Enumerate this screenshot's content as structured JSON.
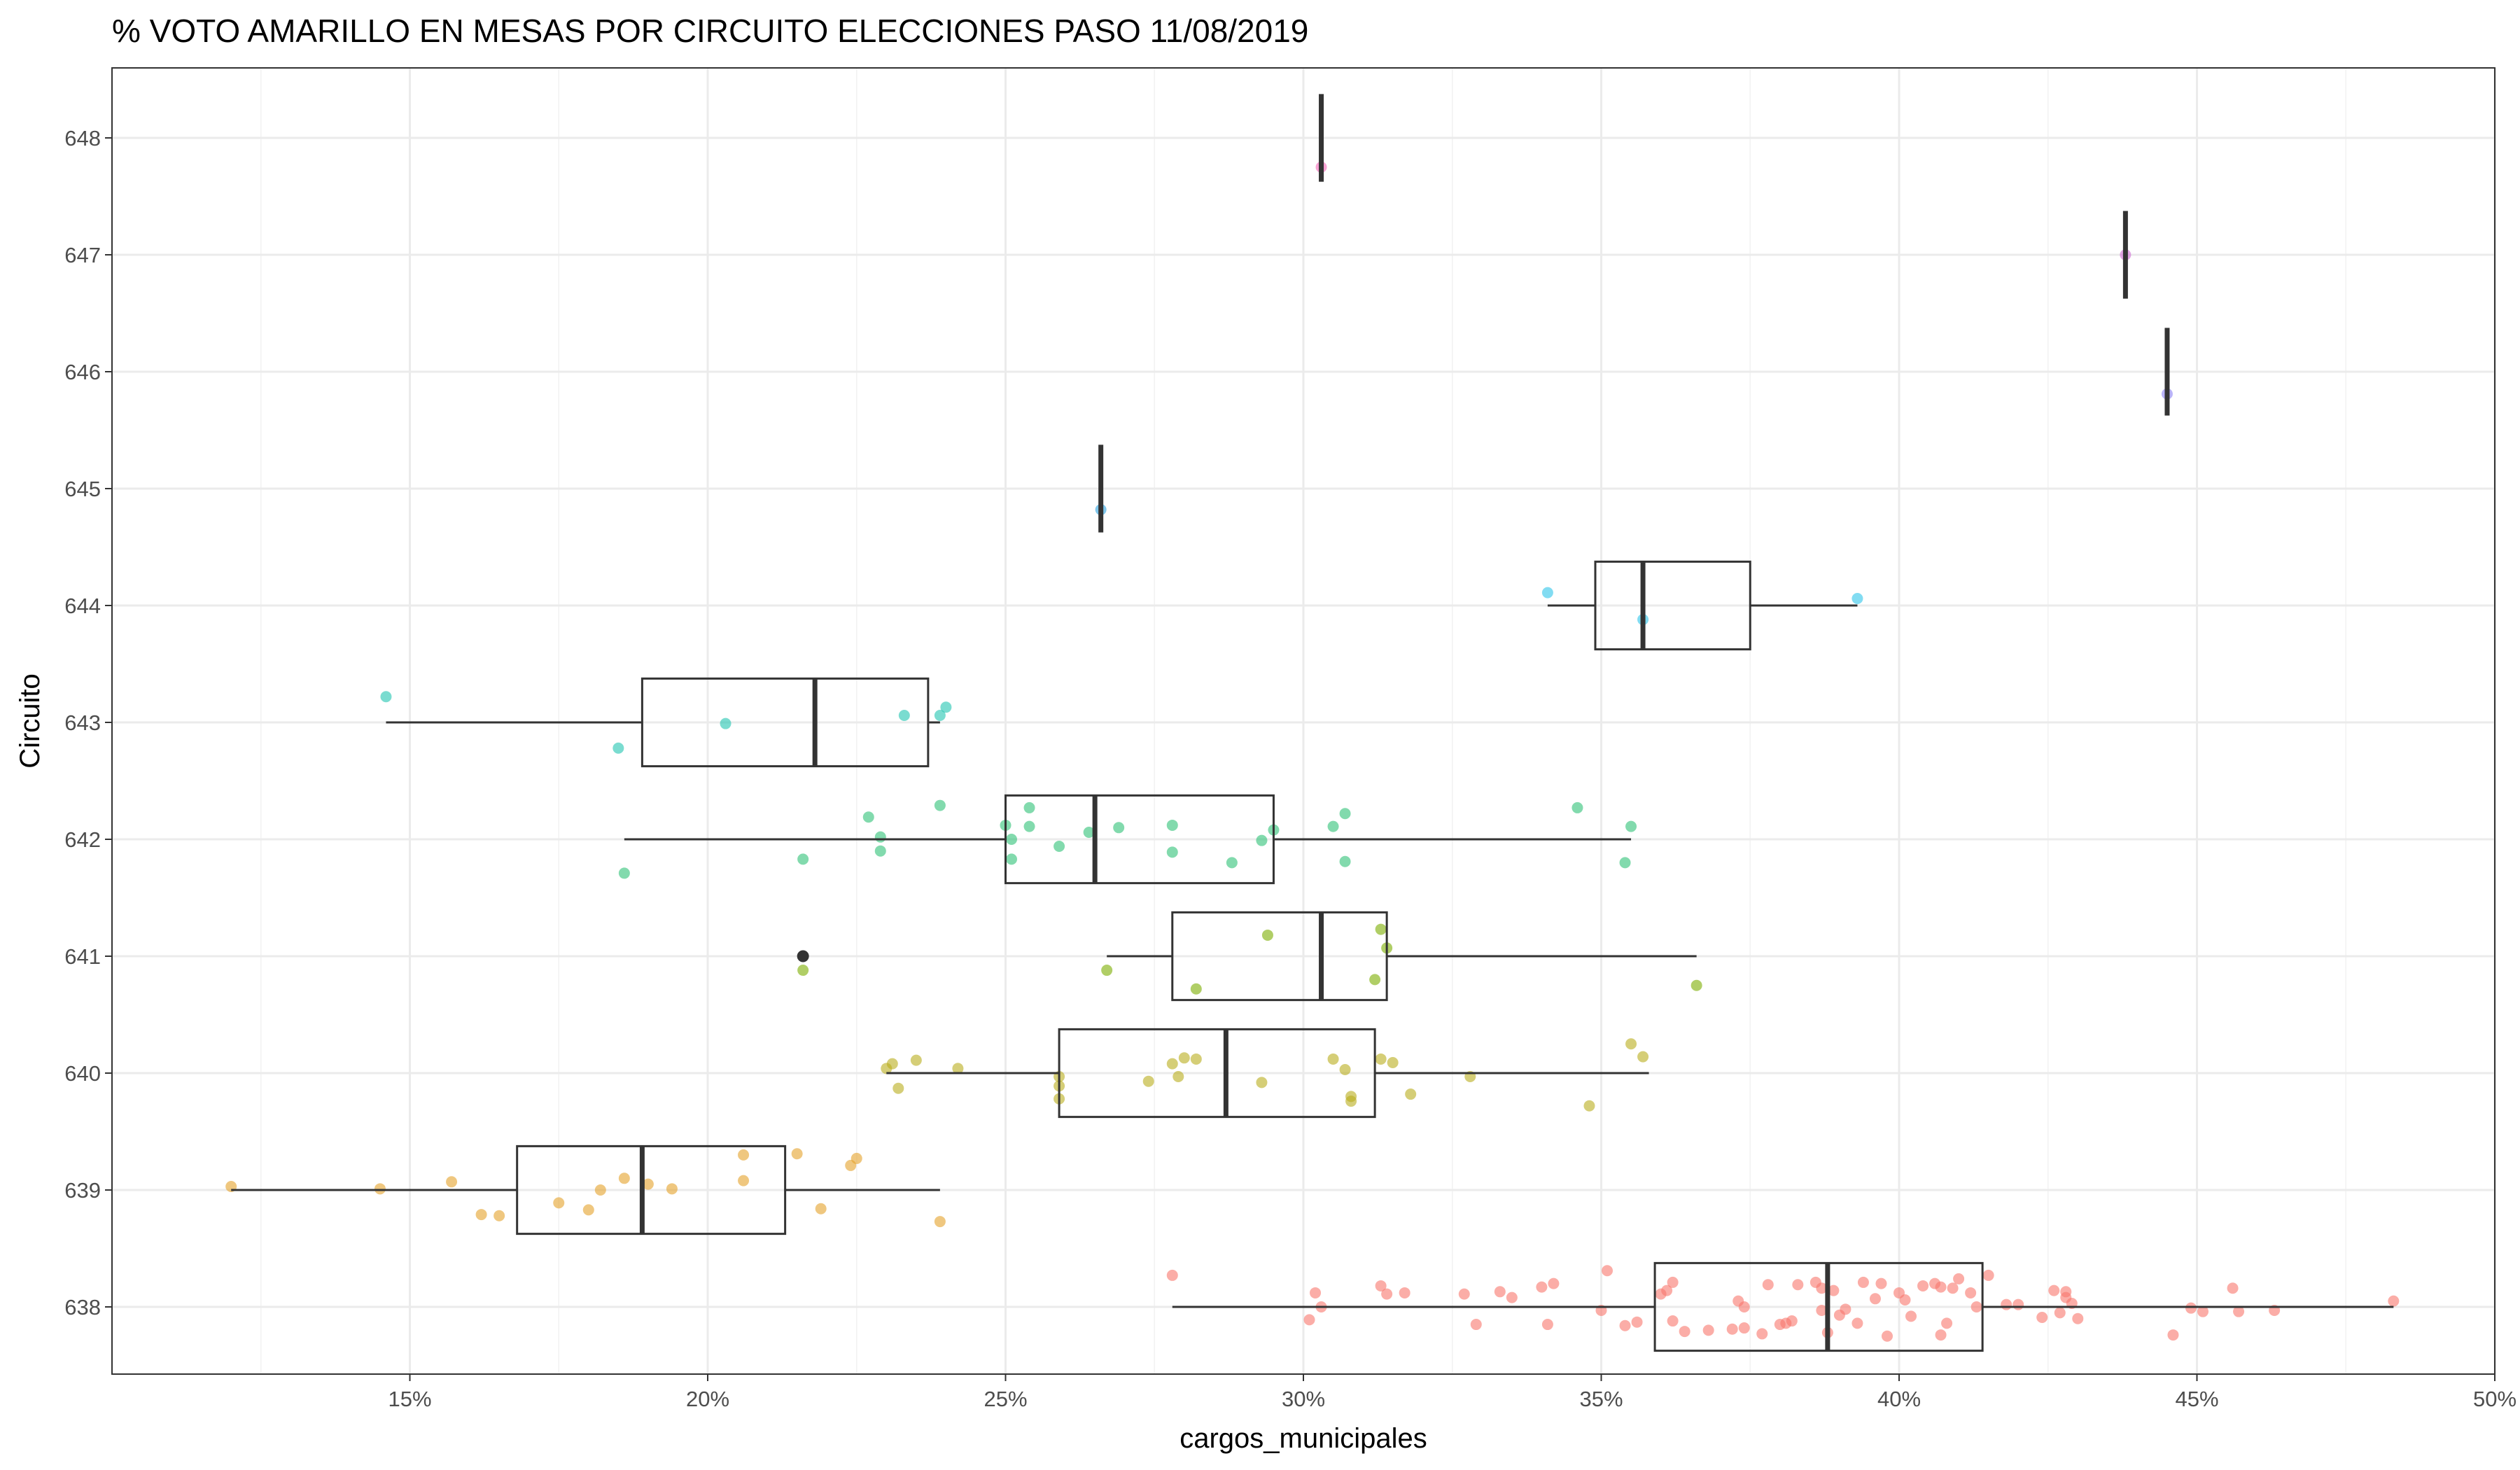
{
  "chart_data": {
    "type": "boxplot",
    "title": "% VOTO AMARILLO EN MESAS POR CIRCUITO  ELECCIONES PASO 11/08/2019",
    "xlabel": "cargos_municipales",
    "ylabel": "Circuito",
    "xlim": [
      0.1,
      0.5
    ],
    "x_ticks": [
      0.15,
      0.2,
      0.25,
      0.3,
      0.35,
      0.4,
      0.45,
      0.5
    ],
    "x_tick_labels": [
      "15%",
      "20%",
      "25%",
      "30%",
      "35%",
      "40%",
      "45%",
      "50%"
    ],
    "categories": [
      "638",
      "639",
      "640",
      "641",
      "642",
      "643",
      "644",
      "645",
      "646",
      "647",
      "648"
    ],
    "grid": true,
    "legend": "none",
    "boxes": [
      {
        "circuito": "638",
        "color": "#f8766d",
        "whisker_low": 0.278,
        "q1": 0.359,
        "median": 0.388,
        "q3": 0.414,
        "whisker_high": 0.483,
        "outliers": [],
        "points": [
          [
            0.278,
            0.27
          ],
          [
            0.302,
            0.12
          ],
          [
            0.301,
            -0.11
          ],
          [
            0.303,
            0.0
          ],
          [
            0.313,
            0.18
          ],
          [
            0.314,
            0.11
          ],
          [
            0.317,
            0.12
          ],
          [
            0.327,
            0.11
          ],
          [
            0.329,
            -0.15
          ],
          [
            0.333,
            0.13
          ],
          [
            0.335,
            0.08
          ],
          [
            0.34,
            0.17
          ],
          [
            0.342,
            0.2
          ],
          [
            0.341,
            -0.15
          ],
          [
            0.351,
            0.31
          ],
          [
            0.35,
            -0.03
          ],
          [
            0.354,
            -0.16
          ],
          [
            0.356,
            -0.13
          ],
          [
            0.361,
            0.14
          ],
          [
            0.36,
            0.11
          ],
          [
            0.362,
            0.21
          ],
          [
            0.362,
            -0.12
          ],
          [
            0.364,
            -0.21
          ],
          [
            0.368,
            -0.2
          ],
          [
            0.372,
            -0.19
          ],
          [
            0.373,
            0.05
          ],
          [
            0.374,
            -0.18
          ],
          [
            0.374,
            0.0
          ],
          [
            0.377,
            -0.23
          ],
          [
            0.378,
            0.19
          ],
          [
            0.38,
            -0.15
          ],
          [
            0.381,
            -0.14
          ],
          [
            0.382,
            -0.12
          ],
          [
            0.383,
            0.19
          ],
          [
            0.386,
            0.21
          ],
          [
            0.387,
            0.16
          ],
          [
            0.387,
            -0.03
          ],
          [
            0.388,
            -0.22
          ],
          [
            0.389,
            0.14
          ],
          [
            0.39,
            -0.07
          ],
          [
            0.391,
            -0.02
          ],
          [
            0.393,
            -0.14
          ],
          [
            0.394,
            0.21
          ],
          [
            0.396,
            0.07
          ],
          [
            0.397,
            0.2
          ],
          [
            0.398,
            -0.25
          ],
          [
            0.4,
            0.12
          ],
          [
            0.401,
            0.06
          ],
          [
            0.402,
            -0.08
          ],
          [
            0.404,
            0.18
          ],
          [
            0.406,
            0.2
          ],
          [
            0.407,
            0.17
          ],
          [
            0.407,
            -0.24
          ],
          [
            0.408,
            -0.14
          ],
          [
            0.409,
            0.16
          ],
          [
            0.41,
            0.24
          ],
          [
            0.412,
            0.12
          ],
          [
            0.413,
            0.0
          ],
          [
            0.415,
            0.27
          ],
          [
            0.418,
            0.02
          ],
          [
            0.42,
            0.02
          ],
          [
            0.424,
            -0.09
          ],
          [
            0.426,
            0.14
          ],
          [
            0.427,
            -0.05
          ],
          [
            0.428,
            0.08
          ],
          [
            0.428,
            0.13
          ],
          [
            0.429,
            0.03
          ],
          [
            0.43,
            -0.1
          ],
          [
            0.446,
            -0.24
          ],
          [
            0.449,
            -0.01
          ],
          [
            0.451,
            -0.04
          ],
          [
            0.456,
            0.16
          ],
          [
            0.457,
            -0.04
          ],
          [
            0.463,
            -0.03
          ],
          [
            0.483,
            0.05
          ]
        ]
      },
      {
        "circuito": "639",
        "color": "#e5a22a",
        "whisker_low": 0.12,
        "q1": 0.168,
        "median": 0.189,
        "q3": 0.213,
        "whisker_high": 0.239,
        "outliers": [],
        "points": [
          [
            0.12,
            0.03
          ],
          [
            0.145,
            0.01
          ],
          [
            0.157,
            0.07
          ],
          [
            0.162,
            -0.21
          ],
          [
            0.165,
            -0.22
          ],
          [
            0.175,
            -0.11
          ],
          [
            0.18,
            -0.17
          ],
          [
            0.182,
            0.0
          ],
          [
            0.186,
            0.1
          ],
          [
            0.19,
            0.05
          ],
          [
            0.194,
            0.01
          ],
          [
            0.206,
            0.3
          ],
          [
            0.206,
            0.08
          ],
          [
            0.215,
            0.31
          ],
          [
            0.219,
            -0.16
          ],
          [
            0.224,
            0.21
          ],
          [
            0.225,
            0.27
          ],
          [
            0.239,
            -0.27
          ]
        ]
      },
      {
        "circuito": "640",
        "color": "#b9ae1c",
        "whisker_low": 0.23,
        "q1": 0.259,
        "median": 0.287,
        "q3": 0.312,
        "whisker_high": 0.358,
        "outliers": [],
        "points": [
          [
            0.23,
            0.04
          ],
          [
            0.231,
            0.08
          ],
          [
            0.232,
            -0.13
          ],
          [
            0.235,
            0.11
          ],
          [
            0.242,
            0.04
          ],
          [
            0.259,
            -0.03
          ],
          [
            0.259,
            -0.11
          ],
          [
            0.259,
            -0.22
          ],
          [
            0.274,
            -0.07
          ],
          [
            0.278,
            0.08
          ],
          [
            0.279,
            -0.03
          ],
          [
            0.28,
            0.13
          ],
          [
            0.282,
            0.12
          ],
          [
            0.293,
            -0.08
          ],
          [
            0.305,
            0.12
          ],
          [
            0.307,
            0.03
          ],
          [
            0.308,
            -0.2
          ],
          [
            0.308,
            -0.24
          ],
          [
            0.313,
            0.12
          ],
          [
            0.315,
            0.09
          ],
          [
            0.318,
            -0.18
          ],
          [
            0.328,
            -0.03
          ],
          [
            0.348,
            -0.28
          ],
          [
            0.355,
            0.25
          ],
          [
            0.357,
            0.14
          ]
        ]
      },
      {
        "circuito": "641",
        "color": "#7cae00",
        "whisker_low": 0.267,
        "q1": 0.278,
        "median": 0.303,
        "q3": 0.314,
        "whisker_high": 0.366,
        "outliers": [
          0.216
        ],
        "points": [
          [
            0.216,
            -0.12
          ],
          [
            0.267,
            -0.12
          ],
          [
            0.282,
            -0.28
          ],
          [
            0.294,
            0.18
          ],
          [
            0.312,
            -0.2
          ],
          [
            0.313,
            0.23
          ],
          [
            0.314,
            0.07
          ],
          [
            0.366,
            -0.25
          ]
        ]
      },
      {
        "circuito": "642",
        "color": "#2ec277",
        "whisker_low": 0.186,
        "q1": 0.25,
        "median": 0.265,
        "q3": 0.295,
        "whisker_high": 0.355,
        "outliers": [],
        "points": [
          [
            0.186,
            -0.29
          ],
          [
            0.216,
            -0.17
          ],
          [
            0.227,
            0.19
          ],
          [
            0.229,
            0.02
          ],
          [
            0.229,
            -0.1
          ],
          [
            0.239,
            0.29
          ],
          [
            0.25,
            0.12
          ],
          [
            0.251,
            0.0
          ],
          [
            0.251,
            -0.17
          ],
          [
            0.254,
            0.11
          ],
          [
            0.254,
            0.27
          ],
          [
            0.259,
            -0.06
          ],
          [
            0.264,
            0.06
          ],
          [
            0.269,
            0.1
          ],
          [
            0.278,
            0.12
          ],
          [
            0.278,
            -0.11
          ],
          [
            0.288,
            -0.2
          ],
          [
            0.293,
            -0.01
          ],
          [
            0.295,
            0.08
          ],
          [
            0.305,
            0.11
          ],
          [
            0.307,
            -0.19
          ],
          [
            0.307,
            0.22
          ],
          [
            0.346,
            0.27
          ],
          [
            0.354,
            -0.2
          ],
          [
            0.355,
            0.11
          ]
        ]
      },
      {
        "circuito": "643",
        "color": "#22c4b0",
        "whisker_low": 0.146,
        "q1": 0.189,
        "median": 0.218,
        "q3": 0.237,
        "whisker_high": 0.239,
        "outliers": [],
        "points": [
          [
            0.146,
            0.22
          ],
          [
            0.185,
            -0.22
          ],
          [
            0.203,
            -0.01
          ],
          [
            0.233,
            0.06
          ],
          [
            0.239,
            0.06
          ],
          [
            0.24,
            0.13
          ]
        ]
      },
      {
        "circuito": "644",
        "color": "#2ec4ea",
        "whisker_low": 0.341,
        "q1": 0.349,
        "median": 0.357,
        "q3": 0.375,
        "whisker_high": 0.393,
        "outliers": [],
        "points": [
          [
            0.341,
            0.11
          ],
          [
            0.357,
            -0.12
          ],
          [
            0.393,
            0.06
          ]
        ]
      },
      {
        "circuito": "645",
        "color": "#2ba2e0",
        "whisker_low": 0.266,
        "q1": 0.266,
        "median": 0.266,
        "q3": 0.266,
        "whisker_high": 0.266,
        "outliers": [],
        "points": [
          [
            0.266,
            -0.18
          ]
        ]
      },
      {
        "circuito": "646",
        "color": "#8c82f5",
        "whisker_low": 0.445,
        "q1": 0.445,
        "median": 0.445,
        "q3": 0.445,
        "whisker_high": 0.445,
        "outliers": [],
        "points": [
          [
            0.445,
            -0.19
          ]
        ]
      },
      {
        "circuito": "647",
        "color": "#d06ad6",
        "whisker_low": 0.438,
        "q1": 0.438,
        "median": 0.438,
        "q3": 0.438,
        "whisker_high": 0.438,
        "outliers": [],
        "points": [
          [
            0.438,
            0.0
          ]
        ]
      },
      {
        "circuito": "648",
        "color": "#f466b8",
        "whisker_low": 0.303,
        "q1": 0.303,
        "median": 0.303,
        "q3": 0.303,
        "whisker_high": 0.303,
        "outliers": [],
        "points": [
          [
            0.303,
            -0.25
          ]
        ]
      }
    ]
  }
}
